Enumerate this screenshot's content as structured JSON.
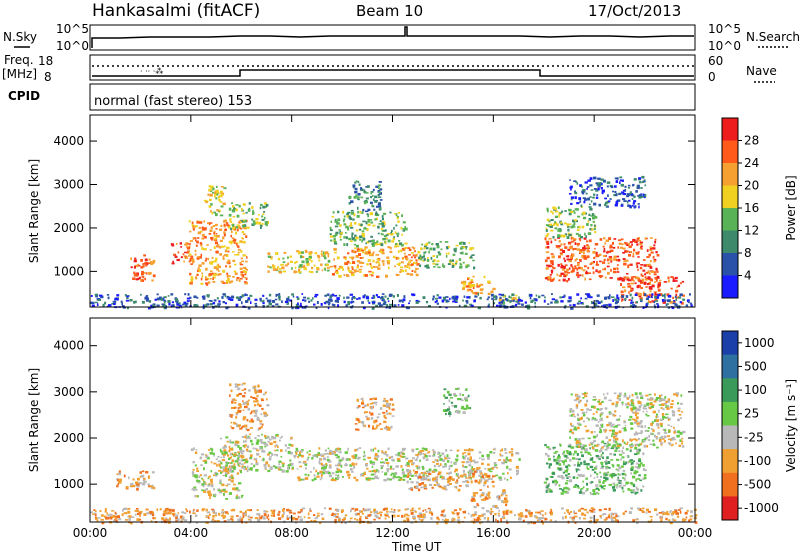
{
  "header": {
    "station": "Hankasalmi (fitACF)",
    "beam": "Beam 10",
    "date": "17/Oct/2013"
  },
  "top_panels": {
    "nsky_label": "N.Sky",
    "nsearch_label": "N.Search",
    "noise_ticks": [
      "10^5",
      "10^0"
    ],
    "freq_label_1": "Freq.",
    "freq_label_2": "[MHz]",
    "freq_ticks": [
      "18",
      "8"
    ],
    "nave_label": "Nave",
    "nave_ticks": [
      "60",
      "0"
    ],
    "cpid_label": "CPID",
    "cpid_text": "normal (fast stereo) 153"
  },
  "chart_data": [
    {
      "type": "heatmap",
      "name": "power",
      "xlabel": "",
      "ylabel": "Slant Range [km]",
      "x_ticks": [
        "00:00",
        "04:00",
        "08:00",
        "12:00",
        "16:00",
        "20:00",
        "00:00"
      ],
      "y_ticks": [
        "1000",
        "2000",
        "3000",
        "4000"
      ],
      "xlim": [
        0,
        24
      ],
      "ylim": [
        180,
        4600
      ],
      "colorbar_label": "Power [dB]",
      "colorbar_ticks": [
        "4",
        "8",
        "12",
        "16",
        "20",
        "24",
        "28"
      ],
      "colorbar_colors": [
        "#1b1bff",
        "#2a52a8",
        "#3c8a6b",
        "#59b255",
        "#f0d020",
        "#f5a030",
        "#ff5a1a",
        "#ee1c1c"
      ],
      "regions": [
        {
          "x": [
            1.5,
            2.5
          ],
          "y": [
            800,
            1400
          ],
          "level": 6
        },
        {
          "x": [
            3.2,
            4.0
          ],
          "y": [
            1200,
            1700
          ],
          "level": 6
        },
        {
          "x": [
            3.9,
            6.2
          ],
          "y": [
            700,
            2200
          ],
          "level": 5
        },
        {
          "x": [
            4.5,
            5.3
          ],
          "y": [
            2300,
            3000
          ],
          "level": 4
        },
        {
          "x": [
            5.5,
            7.0
          ],
          "y": [
            2000,
            2600
          ],
          "level": 3
        },
        {
          "x": [
            7.0,
            9.5
          ],
          "y": [
            1000,
            1500
          ],
          "level": 4
        },
        {
          "x": [
            9.5,
            13.0
          ],
          "y": [
            900,
            1600
          ],
          "level": 5
        },
        {
          "x": [
            9.5,
            12.5
          ],
          "y": [
            1600,
            2400
          ],
          "level": 3
        },
        {
          "x": [
            10.2,
            11.5
          ],
          "y": [
            2400,
            3100
          ],
          "level": 2
        },
        {
          "x": [
            13.0,
            15.2
          ],
          "y": [
            1100,
            1700
          ],
          "level": 3
        },
        {
          "x": [
            14.7,
            16.0
          ],
          "y": [
            500,
            900
          ],
          "level": 5
        },
        {
          "x": [
            16.0,
            17.0
          ],
          "y": [
            300,
            500
          ],
          "level": 4
        },
        {
          "x": [
            18.0,
            22.5
          ],
          "y": [
            800,
            1800
          ],
          "level": 6
        },
        {
          "x": [
            18.0,
            20.0
          ],
          "y": [
            1800,
            2500
          ],
          "level": 3
        },
        {
          "x": [
            21.0,
            23.5
          ],
          "y": [
            300,
            900
          ],
          "level": 6
        },
        {
          "x": [
            19.0,
            22.0
          ],
          "y": [
            2500,
            3200
          ],
          "level": 1
        },
        {
          "x": [
            0,
            24
          ],
          "y": [
            180,
            500
          ],
          "level": 1
        }
      ]
    },
    {
      "type": "heatmap",
      "name": "velocity",
      "xlabel": "Time UT",
      "ylabel": "Slant Range [km]",
      "x_ticks": [
        "00:00",
        "04:00",
        "08:00",
        "12:00",
        "16:00",
        "20:00",
        "00:00"
      ],
      "y_ticks": [
        "1000",
        "2000",
        "3000",
        "4000"
      ],
      "xlim": [
        0,
        24
      ],
      "ylim": [
        180,
        4600
      ],
      "colorbar_label": "Velocity [m s⁻¹]",
      "colorbar_ticks": [
        "1000",
        "500",
        "100",
        "25",
        "-25",
        "-100",
        "-500",
        "-1000"
      ],
      "colorbar_colors": [
        "#1b3fa8",
        "#2e70a0",
        "#3a9a5a",
        "#66c844",
        "#b8b8b8",
        "#f0a030",
        "#f07020",
        "#e02020"
      ],
      "regions": [
        {
          "x": [
            1.0,
            2.5
          ],
          "y": [
            900,
            1300
          ],
          "level": 5
        },
        {
          "x": [
            4.0,
            6.0
          ],
          "y": [
            700,
            1800
          ],
          "level": 4
        },
        {
          "x": [
            5.0,
            8.0
          ],
          "y": [
            1300,
            2100
          ],
          "level": 4
        },
        {
          "x": [
            5.5,
            7.0
          ],
          "y": [
            2200,
            3200
          ],
          "level": 5
        },
        {
          "x": [
            8.0,
            17.0
          ],
          "y": [
            1100,
            1800
          ],
          "level": 4
        },
        {
          "x": [
            10.5,
            12.0
          ],
          "y": [
            2200,
            2900
          ],
          "level": 5
        },
        {
          "x": [
            12.5,
            16.0
          ],
          "y": [
            900,
            1300
          ],
          "level": 5
        },
        {
          "x": [
            15.0,
            16.5
          ],
          "y": [
            500,
            900
          ],
          "level": 5
        },
        {
          "x": [
            18.0,
            22.0
          ],
          "y": [
            800,
            1900
          ],
          "level": 3
        },
        {
          "x": [
            19.0,
            23.5
          ],
          "y": [
            1800,
            3000
          ],
          "level": 4
        },
        {
          "x": [
            14.0,
            15.0
          ],
          "y": [
            2500,
            3100
          ],
          "level": 3
        },
        {
          "x": [
            0,
            24
          ],
          "y": [
            180,
            500
          ],
          "level": 5
        }
      ]
    }
  ]
}
